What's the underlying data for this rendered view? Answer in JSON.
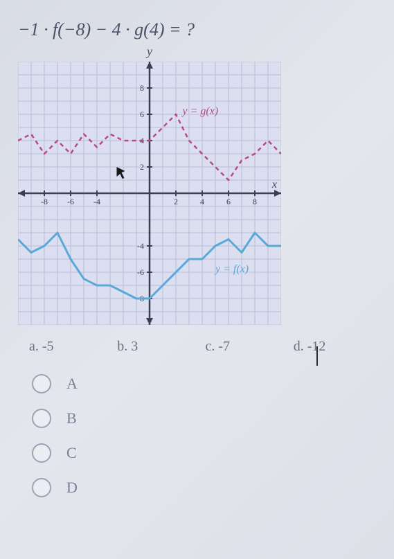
{
  "question": "−1 · f(−8) − 4 · g(4) = ?",
  "axis_label_y": "y",
  "axis_label_x": "x",
  "graph": {
    "type": "line",
    "xlim": [
      -10,
      10
    ],
    "ylim": [
      -10,
      10
    ],
    "xticks": [
      -8,
      -6,
      -4,
      2,
      4,
      6,
      8
    ],
    "yticks": [
      -8,
      -6,
      -4,
      2,
      4,
      6,
      8
    ],
    "tick_fontsize": 12,
    "background_color": "#dcdff0",
    "grid_color": "#b8bdd8",
    "axis_color": "#3a3f55",
    "tick_color": "#3a3f55",
    "series": [
      {
        "label": "y = g(x)",
        "label_pos": [
          2.5,
          6
        ],
        "color": "#b84a8a",
        "width": 2.5,
        "dash": "6,5",
        "points": [
          [
            -10,
            4
          ],
          [
            -9,
            4.5
          ],
          [
            -8,
            3
          ],
          [
            -7,
            4
          ],
          [
            -6,
            3
          ],
          [
            -5,
            4.5
          ],
          [
            -4,
            3.5
          ],
          [
            -3,
            4.5
          ],
          [
            -2,
            4
          ],
          [
            -1,
            4
          ],
          [
            0,
            4
          ],
          [
            1,
            5
          ],
          [
            2,
            6
          ],
          [
            3,
            4
          ],
          [
            4,
            3
          ],
          [
            5,
            2
          ],
          [
            6,
            1
          ],
          [
            7,
            2.5
          ],
          [
            8,
            3
          ],
          [
            9,
            4
          ],
          [
            10,
            3
          ]
        ]
      },
      {
        "label": "y = f(x)",
        "label_pos": [
          5,
          -6
        ],
        "color": "#5aa8d8",
        "width": 3,
        "dash": "none",
        "points": [
          [
            -10,
            -3.5
          ],
          [
            -9,
            -4.5
          ],
          [
            -8,
            -4
          ],
          [
            -7,
            -3
          ],
          [
            -6,
            -5
          ],
          [
            -5,
            -6.5
          ],
          [
            -4,
            -7
          ],
          [
            -3,
            -7
          ],
          [
            -2,
            -7.5
          ],
          [
            -1,
            -8
          ],
          [
            0,
            -8
          ],
          [
            1,
            -7
          ],
          [
            2,
            -6
          ],
          [
            3,
            -5
          ],
          [
            4,
            -5
          ],
          [
            5,
            -4
          ],
          [
            6,
            -3.5
          ],
          [
            7,
            -4.5
          ],
          [
            8,
            -3
          ],
          [
            9,
            -4
          ],
          [
            10,
            -4
          ]
        ]
      }
    ],
    "cursor_pos": [
      -2.5,
      2
    ]
  },
  "answers": {
    "a": {
      "label": "a.",
      "value": "-5"
    },
    "b": {
      "label": "b.",
      "value": "3"
    },
    "c": {
      "label": "c.",
      "value": "-7"
    },
    "d": {
      "label": "d.",
      "value": "-12"
    }
  },
  "options": [
    "A",
    "B",
    "C",
    "D"
  ]
}
